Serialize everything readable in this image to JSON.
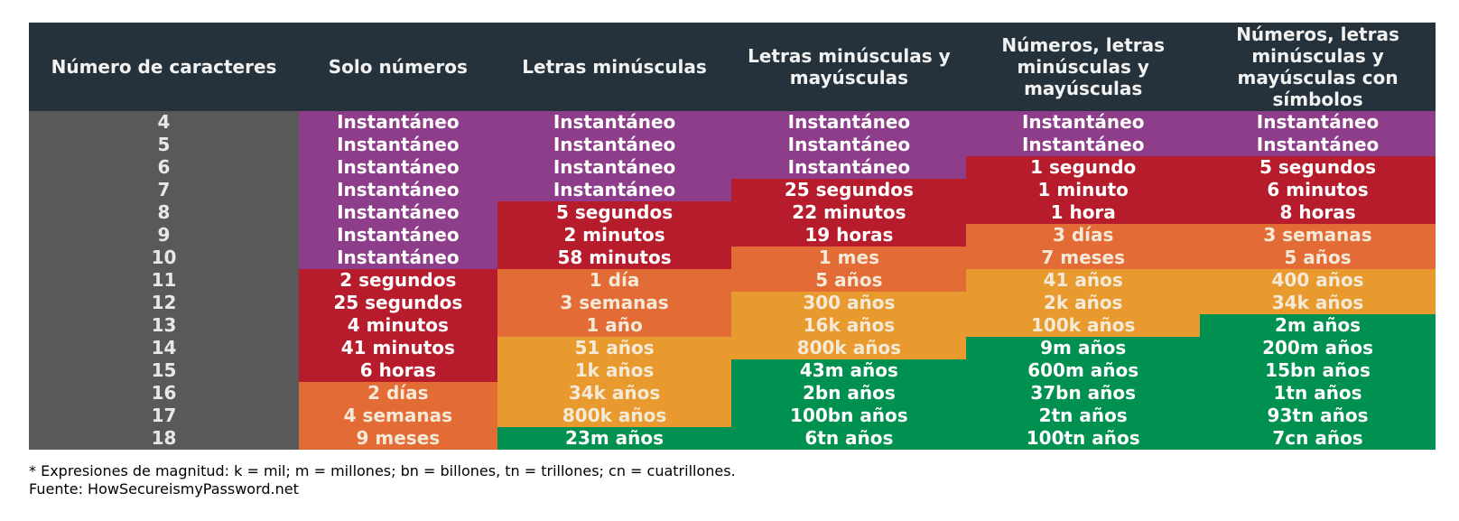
{
  "chart_data": {
    "type": "table",
    "columns": [
      "Número de caracteres",
      "Solo números",
      "Letras minúsculas",
      "Letras minúsculas y mayúsculas",
      "Números, letras minúsculas y mayúsculas",
      "Números, letras minúsculas y mayúsculas con símbolos"
    ],
    "rows": [
      {
        "chars": "4",
        "values": [
          "Instantáneo",
          "Instantáneo",
          "Instantáneo",
          "Instantáneo",
          "Instantáneo"
        ],
        "levels": [
          0,
          0,
          0,
          0,
          0
        ]
      },
      {
        "chars": "5",
        "values": [
          "Instantáneo",
          "Instantáneo",
          "Instantáneo",
          "Instantáneo",
          "Instantáneo"
        ],
        "levels": [
          0,
          0,
          0,
          0,
          0
        ]
      },
      {
        "chars": "6",
        "values": [
          "Instantáneo",
          "Instantáneo",
          "Instantáneo",
          "1 segundo",
          "5 segundos"
        ],
        "levels": [
          0,
          0,
          0,
          1,
          1
        ]
      },
      {
        "chars": "7",
        "values": [
          "Instantáneo",
          "Instantáneo",
          "25 segundos",
          "1 minuto",
          "6 minutos"
        ],
        "levels": [
          0,
          0,
          1,
          1,
          1
        ]
      },
      {
        "chars": "8",
        "values": [
          "Instantáneo",
          "5 segundos",
          "22 minutos",
          "1 hora",
          "8 horas"
        ],
        "levels": [
          0,
          1,
          1,
          1,
          1
        ]
      },
      {
        "chars": "9",
        "values": [
          "Instantáneo",
          "2 minutos",
          "19 horas",
          "3 días",
          "3 semanas"
        ],
        "levels": [
          0,
          1,
          1,
          2,
          2
        ]
      },
      {
        "chars": "10",
        "values": [
          "Instantáneo",
          "58 minutos",
          "1 mes",
          "7 meses",
          "5 años"
        ],
        "levels": [
          0,
          1,
          2,
          2,
          2
        ]
      },
      {
        "chars": "11",
        "values": [
          "2 segundos",
          "1 día",
          "5 años",
          "41 años",
          "400 años"
        ],
        "levels": [
          1,
          2,
          2,
          3,
          3
        ]
      },
      {
        "chars": "12",
        "values": [
          "25 segundos",
          "3 semanas",
          "300 años",
          "2k años",
          "34k años"
        ],
        "levels": [
          1,
          2,
          3,
          3,
          3
        ]
      },
      {
        "chars": "13",
        "values": [
          "4 minutos",
          "1 año",
          "16k años",
          "100k años",
          "2m años"
        ],
        "levels": [
          1,
          2,
          3,
          3,
          4
        ]
      },
      {
        "chars": "14",
        "values": [
          "41 minutos",
          "51 años",
          "800k años",
          "9m años",
          "200m años"
        ],
        "levels": [
          1,
          3,
          3,
          4,
          4
        ]
      },
      {
        "chars": "15",
        "values": [
          "6 horas",
          "1k años",
          "43m años",
          "600m años",
          "15bn años"
        ],
        "levels": [
          1,
          3,
          4,
          4,
          4
        ]
      },
      {
        "chars": "16",
        "values": [
          "2 días",
          "34k años",
          "2bn años",
          "37bn años",
          "1tn años"
        ],
        "levels": [
          2,
          3,
          4,
          4,
          4
        ]
      },
      {
        "chars": "17",
        "values": [
          "4 semanas",
          "800k años",
          "100bn años",
          "2tn años",
          "93tn años"
        ],
        "levels": [
          2,
          3,
          4,
          4,
          4
        ]
      },
      {
        "chars": "18",
        "values": [
          "9 meses",
          "23m años",
          "6tn años",
          "100tn años",
          "7cn años"
        ],
        "levels": [
          2,
          4,
          4,
          4,
          4
        ]
      }
    ],
    "level_colors": [
      "#8e3d8a",
      "#b71c2c",
      "#e36b36",
      "#e89a2e",
      "#00904f"
    ],
    "header_color": "#25323c",
    "row_header_color": "#595959"
  },
  "footer": {
    "note": "* Expresiones de magnitud: k = mil; m = millones; bn = billones, tn = trillones; cn = cuatrillones.",
    "source": "Fuente: HowSecureismyPassword.net"
  }
}
